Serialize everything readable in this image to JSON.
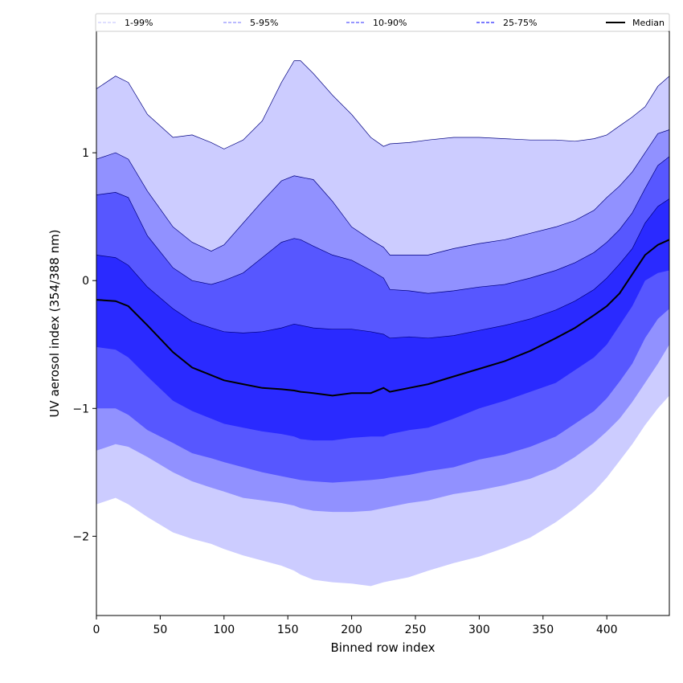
{
  "chart_data": {
    "type": "area",
    "xlabel": "Binned row index",
    "ylabel": "UV aerosol index (354/388 nm)",
    "xlim": [
      0,
      449
    ],
    "ylim": [
      -2.62,
      1.95
    ],
    "xticks": [
      0,
      50,
      100,
      150,
      200,
      250,
      300,
      350,
      400
    ],
    "yticks": [
      -2,
      -1,
      0,
      1
    ],
    "ytick_labels": [
      "−2",
      "−1",
      "0",
      "1"
    ],
    "x": [
      0,
      15,
      25,
      40,
      60,
      75,
      90,
      100,
      115,
      130,
      145,
      155,
      160,
      170,
      185,
      200,
      215,
      225,
      230,
      245,
      260,
      280,
      300,
      320,
      340,
      360,
      375,
      390,
      400,
      410,
      420,
      430,
      440,
      449
    ],
    "series": [
      {
        "name": "1-99%",
        "color": "#ccccff",
        "upper": [
          1.5,
          1.6,
          1.55,
          1.3,
          1.12,
          1.14,
          1.08,
          1.03,
          1.1,
          1.25,
          1.55,
          1.72,
          1.72,
          1.62,
          1.45,
          1.3,
          1.12,
          1.05,
          1.07,
          1.08,
          1.1,
          1.12,
          1.12,
          1.11,
          1.1,
          1.1,
          1.09,
          1.11,
          1.14,
          1.21,
          1.28,
          1.36,
          1.52,
          1.6
        ],
        "lower": [
          -1.75,
          -1.7,
          -1.75,
          -1.85,
          -1.97,
          -2.02,
          -2.06,
          -2.1,
          -2.15,
          -2.19,
          -2.23,
          -2.27,
          -2.3,
          -2.34,
          -2.36,
          -2.37,
          -2.39,
          -2.36,
          -2.35,
          -2.32,
          -2.27,
          -2.21,
          -2.16,
          -2.09,
          -2.01,
          -1.89,
          -1.78,
          -1.65,
          -1.54,
          -1.41,
          -1.28,
          -1.13,
          -1.0,
          -0.9
        ]
      },
      {
        "name": "5-95%",
        "color": "#9191ff",
        "upper": [
          0.95,
          1.0,
          0.95,
          0.7,
          0.42,
          0.3,
          0.23,
          0.28,
          0.45,
          0.62,
          0.78,
          0.82,
          0.81,
          0.79,
          0.62,
          0.42,
          0.32,
          0.26,
          0.2,
          0.2,
          0.2,
          0.25,
          0.29,
          0.32,
          0.37,
          0.42,
          0.47,
          0.55,
          0.65,
          0.74,
          0.85,
          1.0,
          1.15,
          1.18
        ],
        "lower": [
          -1.33,
          -1.28,
          -1.3,
          -1.38,
          -1.5,
          -1.57,
          -1.62,
          -1.65,
          -1.7,
          -1.72,
          -1.74,
          -1.76,
          -1.78,
          -1.8,
          -1.81,
          -1.81,
          -1.8,
          -1.78,
          -1.77,
          -1.74,
          -1.72,
          -1.67,
          -1.64,
          -1.6,
          -1.55,
          -1.47,
          -1.38,
          -1.27,
          -1.18,
          -1.08,
          -0.95,
          -0.8,
          -0.65,
          -0.5
        ]
      },
      {
        "name": "10-90%",
        "color": "#5757ff",
        "upper": [
          0.67,
          0.69,
          0.65,
          0.35,
          0.1,
          0.0,
          -0.03,
          0.0,
          0.06,
          0.18,
          0.3,
          0.33,
          0.32,
          0.27,
          0.2,
          0.16,
          0.08,
          0.02,
          -0.07,
          -0.08,
          -0.1,
          -0.08,
          -0.05,
          -0.03,
          0.02,
          0.08,
          0.14,
          0.22,
          0.3,
          0.4,
          0.53,
          0.72,
          0.9,
          0.97
        ],
        "lower": [
          -1.0,
          -1.0,
          -1.05,
          -1.17,
          -1.27,
          -1.35,
          -1.39,
          -1.42,
          -1.46,
          -1.5,
          -1.53,
          -1.55,
          -1.56,
          -1.57,
          -1.58,
          -1.57,
          -1.56,
          -1.55,
          -1.54,
          -1.52,
          -1.49,
          -1.46,
          -1.4,
          -1.36,
          -1.3,
          -1.22,
          -1.12,
          -1.02,
          -0.92,
          -0.79,
          -0.65,
          -0.45,
          -0.3,
          -0.22
        ]
      },
      {
        "name": "25-75%",
        "color": "#2a2aff",
        "upper": [
          0.2,
          0.18,
          0.12,
          -0.05,
          -0.22,
          -0.32,
          -0.37,
          -0.4,
          -0.41,
          -0.4,
          -0.37,
          -0.34,
          -0.35,
          -0.37,
          -0.38,
          -0.38,
          -0.4,
          -0.42,
          -0.45,
          -0.44,
          -0.45,
          -0.43,
          -0.39,
          -0.35,
          -0.3,
          -0.23,
          -0.16,
          -0.07,
          0.02,
          0.13,
          0.25,
          0.45,
          0.58,
          0.64
        ],
        "lower": [
          -0.52,
          -0.54,
          -0.6,
          -0.75,
          -0.94,
          -1.02,
          -1.08,
          -1.12,
          -1.15,
          -1.18,
          -1.2,
          -1.22,
          -1.24,
          -1.25,
          -1.25,
          -1.23,
          -1.22,
          -1.22,
          -1.2,
          -1.17,
          -1.15,
          -1.08,
          -1.0,
          -0.94,
          -0.87,
          -0.8,
          -0.7,
          -0.6,
          -0.5,
          -0.35,
          -0.2,
          0.0,
          0.06,
          0.08
        ]
      }
    ],
    "median": {
      "name": "Median",
      "color": "#000000",
      "values": [
        -0.15,
        -0.16,
        -0.2,
        -0.35,
        -0.56,
        -0.68,
        -0.74,
        -0.78,
        -0.81,
        -0.84,
        -0.85,
        -0.86,
        -0.87,
        -0.88,
        -0.9,
        -0.88,
        -0.88,
        -0.84,
        -0.87,
        -0.84,
        -0.81,
        -0.75,
        -0.69,
        -0.63,
        -0.55,
        -0.45,
        -0.37,
        -0.27,
        -0.2,
        -0.1,
        0.05,
        0.2,
        0.28,
        0.32
      ]
    },
    "legend": {
      "placement": "top, horizontal",
      "entries": [
        {
          "label": "1-99%",
          "color": "#ccccff",
          "style": "dashed"
        },
        {
          "label": "5-95%",
          "color": "#9191ff",
          "style": "dashed"
        },
        {
          "label": "10-90%",
          "color": "#5757ff",
          "style": "dashed"
        },
        {
          "label": "25-75%",
          "color": "#2a2aff",
          "style": "dashed"
        },
        {
          "label": "Median",
          "color": "#000000",
          "style": "solid"
        }
      ]
    },
    "grid": false
  }
}
